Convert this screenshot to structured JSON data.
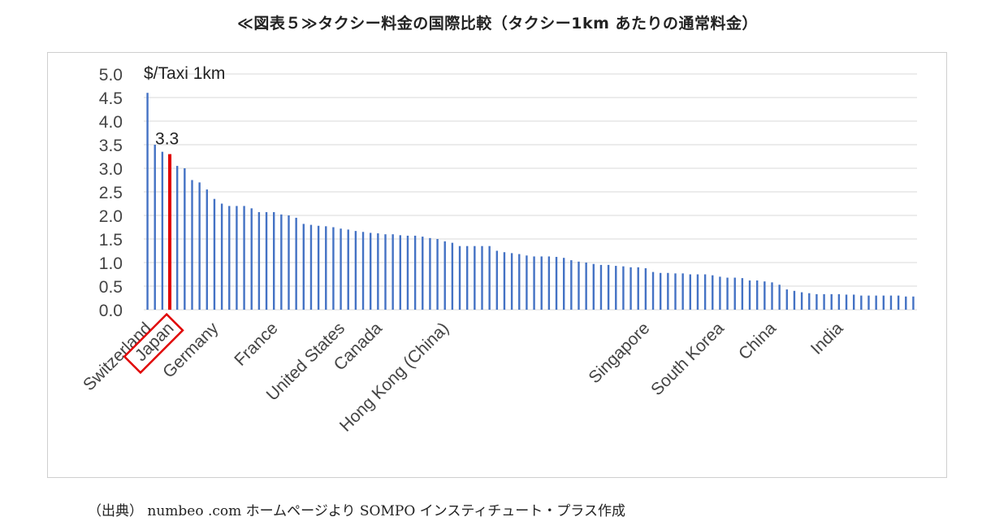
{
  "title": "≪図表５≫タクシー料金の国際比較（タクシー1km あたりの通常料金）",
  "source_note": "（出典） numbeo .com ホームページより SOMPO インスティチュート・プラス作成",
  "chart_data": {
    "type": "bar",
    "ylabel": "$/Taxi  1km",
    "ylim": [
      0,
      5
    ],
    "y_ticks": [
      "5.0",
      "4.5",
      "4.0",
      "3.5",
      "3.0",
      "2.5",
      "2.0",
      "1.5",
      "1.0",
      "0.5",
      "0.0"
    ],
    "grid": true,
    "bar_color": "#4472C4",
    "highlight_color": "#E00000",
    "highlight_index": 3,
    "highlight_label": "3.3",
    "category_labels": [
      {
        "index": 0,
        "label": "Switzerland"
      },
      {
        "index": 3,
        "label": "Japan",
        "boxed": true
      },
      {
        "index": 9,
        "label": "Germany"
      },
      {
        "index": 17,
        "label": "France"
      },
      {
        "index": 26,
        "label": "United States"
      },
      {
        "index": 31,
        "label": "Canada"
      },
      {
        "index": 40,
        "label": "Hong Kong (China)"
      },
      {
        "index": 67,
        "label": "Singapore"
      },
      {
        "index": 77,
        "label": "South Korea"
      },
      {
        "index": 84,
        "label": "China"
      },
      {
        "index": 93,
        "label": "India"
      }
    ],
    "values": [
      4.6,
      3.5,
      3.35,
      3.3,
      3.05,
      3.0,
      2.75,
      2.7,
      2.55,
      2.35,
      2.25,
      2.2,
      2.2,
      2.2,
      2.15,
      2.07,
      2.07,
      2.07,
      2.02,
      2.0,
      1.95,
      1.82,
      1.8,
      1.78,
      1.77,
      1.75,
      1.72,
      1.7,
      1.67,
      1.65,
      1.63,
      1.62,
      1.6,
      1.6,
      1.58,
      1.57,
      1.57,
      1.55,
      1.52,
      1.5,
      1.45,
      1.42,
      1.35,
      1.35,
      1.35,
      1.35,
      1.35,
      1.25,
      1.22,
      1.2,
      1.18,
      1.15,
      1.13,
      1.13,
      1.13,
      1.12,
      1.1,
      1.05,
      1.02,
      1.0,
      0.97,
      0.95,
      0.95,
      0.93,
      0.92,
      0.9,
      0.9,
      0.88,
      0.8,
      0.78,
      0.78,
      0.77,
      0.77,
      0.75,
      0.75,
      0.75,
      0.73,
      0.7,
      0.68,
      0.68,
      0.67,
      0.62,
      0.62,
      0.6,
      0.58,
      0.53,
      0.43,
      0.4,
      0.37,
      0.35,
      0.33,
      0.33,
      0.33,
      0.33,
      0.32,
      0.32,
      0.3,
      0.3,
      0.3,
      0.3,
      0.3,
      0.3,
      0.28,
      0.28
    ]
  }
}
